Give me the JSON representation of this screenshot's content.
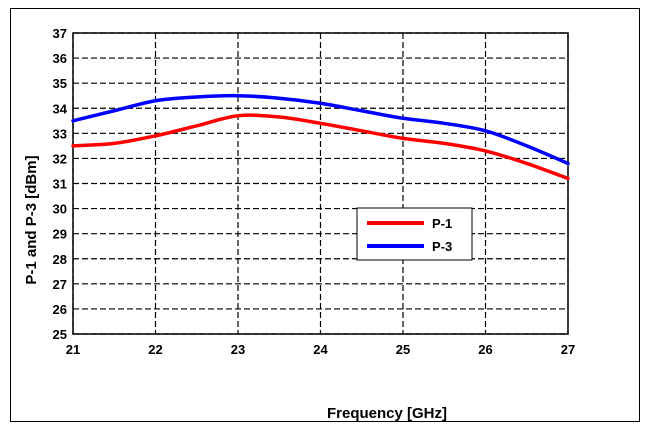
{
  "chart_data": {
    "type": "line",
    "title": "",
    "xlabel": "Frequency [GHz]",
    "ylabel": "P-1 and P-3 [dBm]",
    "xlim": [
      21,
      27
    ],
    "ylim": [
      25,
      37
    ],
    "xticks": [
      "21",
      "22",
      "23",
      "24",
      "25",
      "26",
      "27"
    ],
    "yticks": [
      "25",
      "26",
      "27",
      "28",
      "29",
      "30",
      "31",
      "32",
      "33",
      "34",
      "35",
      "36",
      "37"
    ],
    "grid": true,
    "legend_position": "center-right",
    "series": [
      {
        "name": "P-1",
        "color": "#ff0000",
        "x": [
          21,
          21.5,
          22,
          22.5,
          23,
          23.5,
          24,
          24.5,
          25,
          25.5,
          26,
          26.5,
          27
        ],
        "y": [
          32.5,
          32.6,
          32.9,
          33.3,
          33.7,
          33.65,
          33.4,
          33.1,
          32.8,
          32.6,
          32.3,
          31.8,
          31.2
        ]
      },
      {
        "name": "P-3",
        "color": "#0000ff",
        "x": [
          21,
          21.5,
          22,
          22.5,
          23,
          23.5,
          24,
          24.5,
          25,
          25.5,
          26,
          26.5,
          27
        ],
        "y": [
          33.5,
          33.9,
          34.3,
          34.45,
          34.5,
          34.4,
          34.2,
          33.9,
          33.6,
          33.4,
          33.1,
          32.5,
          31.8
        ]
      }
    ]
  }
}
